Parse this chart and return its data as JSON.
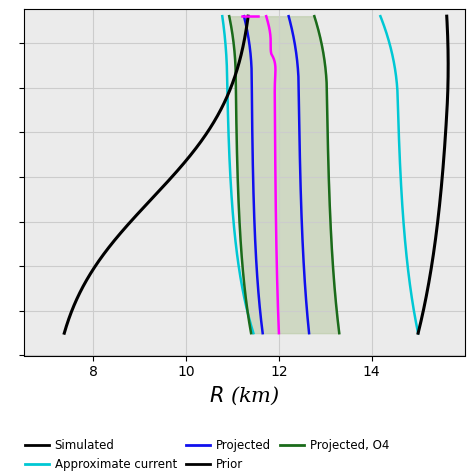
{
  "xlim": [
    6.5,
    16.0
  ],
  "ylim": [
    0.8,
    2.35
  ],
  "xlabel": "$R$ (km)",
  "xlabel_fontsize": 15,
  "xticks": [
    8,
    10,
    12,
    14
  ],
  "grid_color": "#cccccc",
  "bg_color": "#ebebeb",
  "fill_color": "#b8c9a3",
  "fill_alpha": 0.55,
  "colors": {
    "black": "#000000",
    "cyan": "#00c8d4",
    "blue": "#1010ee",
    "magenta": "#ff00ff",
    "dark_green": "#1a6b1a"
  }
}
